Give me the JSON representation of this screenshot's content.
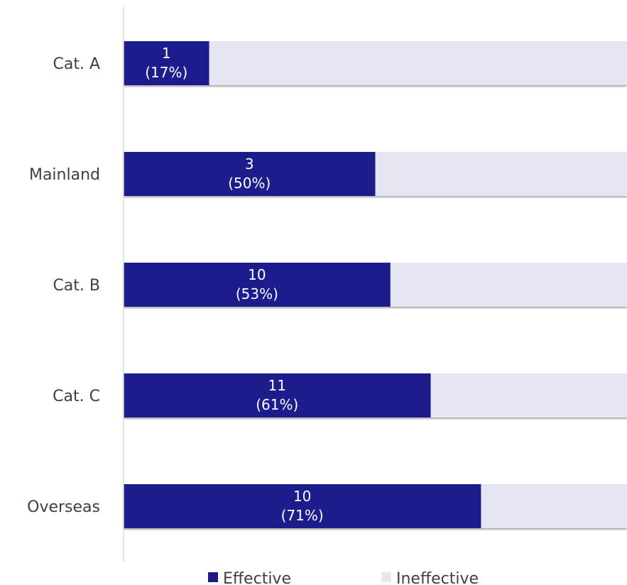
{
  "chart_data": {
    "type": "bar",
    "orientation": "horizontal",
    "stacked": true,
    "percent_stacked": true,
    "categories": [
      "Cat. A",
      "Mainland",
      "Cat. B",
      "Cat. C",
      "Overseas"
    ],
    "series": [
      {
        "name": "Effective",
        "color": "#1a1a8c",
        "values": [
          17,
          50,
          53,
          61,
          71
        ],
        "counts": [
          "1",
          "3",
          "10",
          "11",
          "10"
        ],
        "pct_labels": [
          "(17%)",
          "(50%)",
          "(53%)",
          "(61%)",
          "(71%)"
        ]
      },
      {
        "name": "Ineffective",
        "color": "#e6e6f2",
        "values": [
          83,
          50,
          47,
          39,
          29
        ]
      }
    ],
    "xlim": [
      0,
      100
    ],
    "legend": "bottom",
    "grid": false,
    "title": "",
    "xlabel": "",
    "ylabel": ""
  }
}
